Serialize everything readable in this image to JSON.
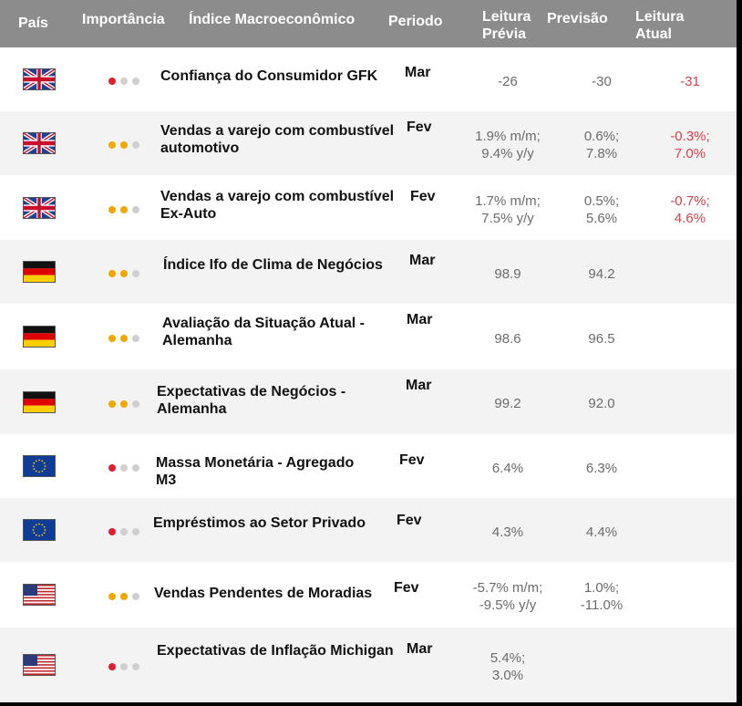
{
  "header": {
    "country": "País",
    "importance": "Importância",
    "indicator": "Índice Macroeconômico",
    "period": "Periodo",
    "previous_line1": "Leitura",
    "previous_line2": "Prévia",
    "forecast": "Previsão",
    "actual_line1": "Leitura",
    "actual_line2": "Atual"
  },
  "colors": {
    "high": "#e02030",
    "medium": "#f0a800",
    "low": "#cfcfcf",
    "negative": "#d8404a"
  },
  "rows": [
    {
      "flag": "uk-flag-icon",
      "importance": "high",
      "name": [
        "Confiança do Consumidor GFK"
      ],
      "period": "Mar",
      "previous": [
        "-26"
      ],
      "forecast": [
        "-30"
      ],
      "actual": [
        "-31"
      ]
    },
    {
      "flag": "uk-flag-icon",
      "importance": "medium",
      "name": [
        "Vendas a varejo com combustível",
        "automotivo"
      ],
      "period": "Fev",
      "previous": [
        "1.9% m/m;",
        "9.4% y/y"
      ],
      "forecast": [
        "0.6%;",
        "7.8%"
      ],
      "actual": [
        "-0.3%;",
        "7.0%"
      ]
    },
    {
      "flag": "uk-flag-icon",
      "importance": "medium",
      "name": [
        "Vendas a varejo com combustível",
        "Ex-Auto"
      ],
      "period": "Fev",
      "previous": [
        "1.7% m/m;",
        "7.5% y/y"
      ],
      "forecast": [
        "0.5%;",
        "5.6%"
      ],
      "actual": [
        "-0.7%;",
        "4.6%"
      ]
    },
    {
      "flag": "germany-flag-icon",
      "importance": "medium",
      "name": [
        "Índice Ifo de Clima de Negócios"
      ],
      "period": "Mar",
      "previous": [
        "98.9"
      ],
      "forecast": [
        "94.2"
      ],
      "actual": []
    },
    {
      "flag": "germany-flag-icon",
      "importance": "medium",
      "name": [
        "Avaliação da Situação Atual -",
        "Alemanha"
      ],
      "period": "Mar",
      "previous": [
        "98.6"
      ],
      "forecast": [
        "96.5"
      ],
      "actual": []
    },
    {
      "flag": "germany-flag-icon",
      "importance": "medium",
      "name": [
        "Expectativas de Negócios -",
        "Alemanha"
      ],
      "period": "Mar",
      "previous": [
        "99.2"
      ],
      "forecast": [
        "92.0"
      ],
      "actual": []
    },
    {
      "flag": "eu-flag-icon",
      "importance": "high",
      "name": [
        "Massa Monetária - Agregado",
        "M3"
      ],
      "period": "Fev",
      "previous": [
        "6.4%"
      ],
      "forecast": [
        "6.3%"
      ],
      "actual": []
    },
    {
      "flag": "eu-flag-icon",
      "importance": "high",
      "name": [
        "Empréstimos ao Setor Privado"
      ],
      "period": "Fev",
      "previous": [
        "4.3%"
      ],
      "forecast": [
        "4.4%"
      ],
      "actual": []
    },
    {
      "flag": "us-flag-icon",
      "importance": "medium",
      "name": [
        "Vendas Pendentes de Moradias"
      ],
      "period": "Fev",
      "previous": [
        "-5.7% m/m;",
        "-9.5% y/y"
      ],
      "forecast": [
        "1.0%;",
        "-11.0%"
      ],
      "actual": []
    },
    {
      "flag": "us-flag-icon",
      "importance": "high",
      "name": [
        "Expectativas de Inflação Michigan"
      ],
      "period": "Mar",
      "previous": [
        "5.4%;",
        "3.0%"
      ],
      "forecast": [],
      "actual": []
    }
  ]
}
